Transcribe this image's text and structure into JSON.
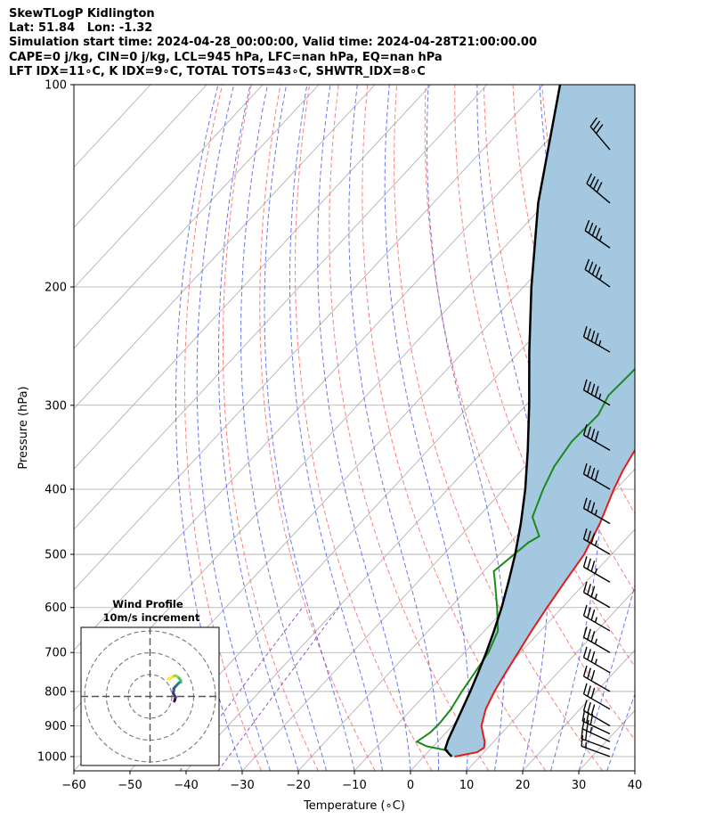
{
  "header": {
    "line1": "SkewTLogP Kidlington",
    "line2": "Lat: 51.84   Lon: -1.32",
    "line3": "Simulation start time: 2024-04-28_00:00:00, Valid time: 2024-04-28T21:00:00.00",
    "line4": "CAPE=0 j/kg, CIN=0 j/kg, LCL=945 hPa, LFC=nan hPa, EQ=nan hPa",
    "line5": "LFT IDX=11∘C, K IDX=9∘C, TOTAL TOTS=43∘C, SHWTR_IDX=8∘C"
  },
  "chart_data": {
    "type": "skew-t log-p",
    "xlabel": "Temperature (∘C)",
    "ylabel": "Pressure (hPa)",
    "xlim": [
      -60,
      40
    ],
    "ylim": [
      1050,
      100
    ],
    "y_scale": "log",
    "grid": true,
    "x_ticks": [
      -60,
      -50,
      -40,
      -30,
      -20,
      -10,
      0,
      10,
      20,
      30,
      40
    ],
    "x_tick_labels": [
      "−60",
      "−50",
      "−40",
      "−30",
      "−20",
      "−10",
      "0",
      "10",
      "20",
      "30",
      "40"
    ],
    "y_ticks": [
      1000,
      900,
      800,
      700,
      600,
      500,
      400,
      300,
      200,
      100
    ],
    "y_tick_labels": [
      "1000",
      "900",
      "800",
      "700",
      "600",
      "500",
      "400",
      "300",
      "200",
      "100"
    ],
    "colors": {
      "temperature": "#e41a1c",
      "dewpoint": "#1a8a1a",
      "parcel": "#000000",
      "shade": "#a3c8e0",
      "dry_adiabat": "#ff6666",
      "moist_adiabat": "#4455ee",
      "mixing_ratio": "#8833bb",
      "isotherm": "#aaaaaa"
    },
    "temperature": {
      "p": [
        1000,
        985,
        970,
        950,
        925,
        900,
        850,
        800,
        750,
        700,
        650,
        600,
        550,
        500,
        450,
        400,
        375,
        350,
        330,
        310,
        300,
        290,
        280,
        270,
        260,
        250,
        240,
        230,
        220,
        210,
        200,
        190,
        180,
        170,
        160,
        150,
        140,
        130,
        120,
        110,
        100
      ],
      "t": [
        5.5,
        8.8,
        9.3,
        8.4,
        6.8,
        5.2,
        3.2,
        1.8,
        0.7,
        -0.4,
        -1.6,
        -2.7,
        -3.8,
        -4.9,
        -7.2,
        -10.4,
        -11.9,
        -13.1,
        -13.5,
        -12.5,
        -11.2,
        -8.9,
        -5.8,
        -2.8,
        0.2,
        2.7,
        4.4,
        5.6,
        6.4,
        7.2,
        8.1,
        9.0,
        9.9,
        10.6,
        11.8,
        12.9,
        13.8,
        14.6,
        15.2,
        16.1,
        17.4
      ]
    },
    "dewpoint": {
      "p": [
        980,
        965,
        950,
        920,
        890,
        850,
        800,
        750,
        700,
        650,
        600,
        550,
        530,
        480,
        470,
        440,
        400,
        370,
        340,
        310,
        290,
        270,
        250,
        230,
        210,
        190,
        170,
        150,
        130,
        110,
        100
      ],
      "t": [
        3.4,
        -1.2,
        -3.7,
        -2.8,
        -2.7,
        -3.0,
        -4.0,
        -4.8,
        -5.7,
        -7.6,
        -11.6,
        -16.2,
        -18.2,
        -16.8,
        -15.9,
        -20.3,
        -23.0,
        -24.8,
        -25.8,
        -25.5,
        -26.9,
        -26.6,
        -26.5,
        -27.3,
        -29.6,
        -32.4,
        -33.2,
        -33.5,
        -33.0,
        -33.4,
        -34.1
      ]
    },
    "parcel": {
      "p": [
        1000,
        990,
        975,
        960,
        945,
        900,
        850,
        800,
        750,
        700,
        650,
        600,
        550,
        500,
        450,
        400,
        350,
        300,
        250,
        200,
        150,
        100
      ],
      "t": [
        5.0,
        4.0,
        2.6,
        2.1,
        1.6,
        0.4,
        -1.0,
        -2.5,
        -4.2,
        -6.1,
        -8.3,
        -10.8,
        -13.8,
        -17.2,
        -21.3,
        -26.2,
        -32.2,
        -39.4,
        -48.2,
        -58.6,
        -71.3,
        -87.0
      ]
    },
    "wind_barbs": {
      "p": [
        1000,
        975,
        950,
        925,
        900,
        850,
        800,
        750,
        700,
        650,
        600,
        550,
        500,
        450,
        400,
        350,
        300,
        250,
        200,
        175,
        150,
        125,
        100
      ],
      "speed_kt": [
        15,
        20,
        25,
        30,
        30,
        30,
        30,
        35,
        35,
        35,
        35,
        35,
        35,
        35,
        40,
        40,
        45,
        45,
        45,
        45,
        40,
        30,
        15
      ],
      "dir_deg": [
        290,
        290,
        295,
        295,
        300,
        300,
        300,
        300,
        300,
        300,
        300,
        300,
        300,
        300,
        300,
        300,
        300,
        300,
        305,
        305,
        310,
        320,
        350
      ]
    },
    "inset": {
      "title": "Wind Profile",
      "subtitle": "10m/s increment",
      "rings_mps": [
        10,
        20,
        30
      ],
      "hodograph_uv": [
        [
          -1,
          4
        ],
        [
          0,
          6
        ],
        [
          1,
          9
        ],
        [
          -3,
          14
        ],
        [
          -2,
          18
        ],
        [
          -2,
          20
        ],
        [
          3,
          24
        ],
        [
          7,
          27
        ],
        [
          9,
          28
        ],
        [
          10,
          28
        ],
        [
          10,
          30
        ],
        [
          8,
          32
        ],
        [
          4,
          35
        ],
        [
          0,
          36
        ],
        [
          -5,
          34
        ],
        [
          -9,
          32
        ],
        [
          -12,
          32
        ]
      ]
    }
  }
}
